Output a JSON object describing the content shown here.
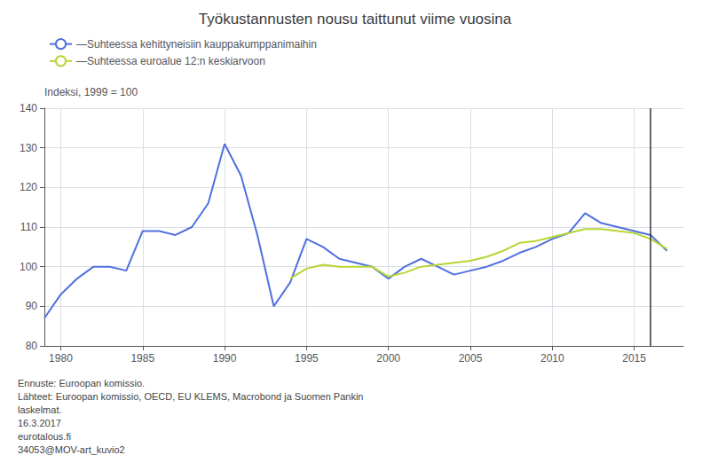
{
  "chart_data": {
    "type": "line",
    "title": "Työkustannusten nousu taittunut viime vuosina",
    "ylabel": "Indeksi, 1999 = 100",
    "x": [
      1979,
      1980,
      1981,
      1982,
      1983,
      1984,
      1985,
      1986,
      1987,
      1988,
      1989,
      1990,
      1991,
      1992,
      1993,
      1994,
      1995,
      1996,
      1997,
      1998,
      1999,
      2000,
      2001,
      2002,
      2003,
      2004,
      2005,
      2006,
      2007,
      2008,
      2009,
      2010,
      2011,
      2012,
      2013,
      2014,
      2015,
      2016,
      2017
    ],
    "series": [
      {
        "name": "—Suhteessa kehittyneisiin kauppakumppanimaihin",
        "values": [
          87.0,
          93.0,
          97.0,
          100.0,
          100.0,
          99.0,
          109.0,
          109.0,
          108.0,
          110.0,
          116.0,
          131.0,
          123.0,
          108.0,
          90.0,
          96.0,
          107.0,
          105.0,
          102.0,
          101.0,
          100.0,
          97.0,
          100.0,
          102.0,
          100.0,
          98.0,
          99.0,
          100.0,
          101.5,
          103.5,
          105.0,
          107.0,
          108.5,
          113.5,
          111.0,
          110.0,
          109.0,
          108.0,
          104.0
        ]
      },
      {
        "name": "—Suhteessa euroalue 12:n keskiarvoon",
        "values": [
          null,
          null,
          null,
          null,
          null,
          null,
          null,
          null,
          null,
          null,
          null,
          null,
          null,
          null,
          null,
          97.0,
          99.5,
          100.5,
          100.0,
          100.0,
          100.0,
          97.5,
          98.5,
          100.0,
          100.5,
          101.0,
          101.5,
          102.5,
          104.0,
          106.0,
          106.5,
          107.5,
          108.5,
          109.5,
          109.5,
          109.0,
          108.5,
          107.0,
          104.5
        ]
      }
    ],
    "vertical_line_x": 2016,
    "xlim": [
      1979,
      2018
    ],
    "xticks": [
      1980,
      1985,
      1990,
      1995,
      2000,
      2005,
      2010,
      2015
    ],
    "ylim": [
      80,
      140
    ],
    "yticks": [
      80,
      90,
      100,
      110,
      120,
      130,
      140
    ],
    "grid": true,
    "footnotes": [
      "Ennuste: Euroopan komissio.",
      "Lähteet: Euroopan komissio, OECD, EU KLEMS, Macrobond ja Suomen Pankin",
      "laskelmat.",
      "16.3.2017",
      "eurotalous.fi",
      "34053@MOV-art_kuvio2"
    ]
  }
}
